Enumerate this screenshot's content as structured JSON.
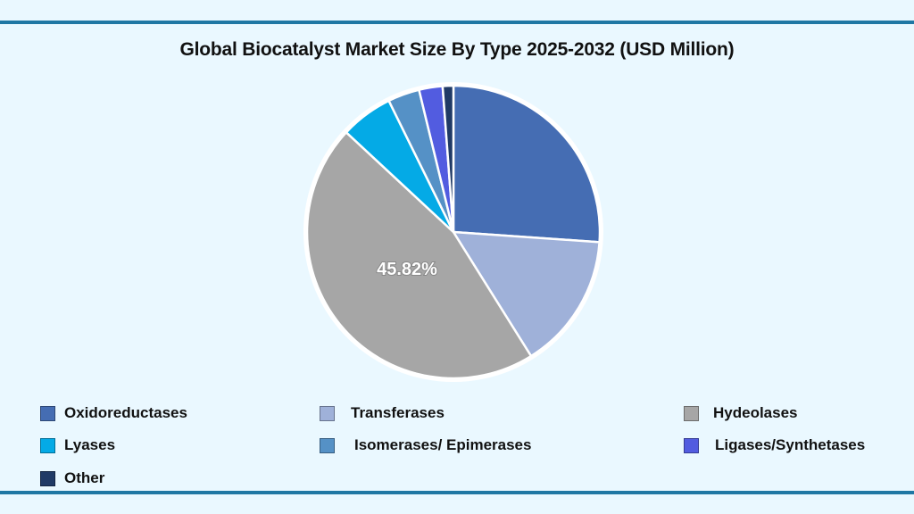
{
  "chart_data": {
    "type": "pie",
    "title": "Global Biocatalyst Market Size By Type 2025-2032 (USD Million)",
    "labels": [
      "Oxidoreductases",
      "Transferases",
      "Hydeolases",
      "Lyases",
      "Isomerases/ Epimerases",
      "Ligases/Synthetases",
      "Other"
    ],
    "values": [
      26.1,
      15.0,
      45.82,
      5.8,
      3.5,
      2.6,
      1.18
    ],
    "colors": [
      "#456db3",
      "#9fb1d9",
      "#a6a6a6",
      "#04aae6",
      "#5591c6",
      "#525ce0",
      "#203a66"
    ],
    "data_labels": [
      {
        "label": "Hydeolases",
        "text": "45.82%"
      }
    ],
    "legend_position": "bottom",
    "start_angle_deg": 0,
    "direction": "clockwise"
  },
  "header": {
    "title": "Global Biocatalyst Market Size By Type 2025-2032 (USD Million)"
  },
  "pie_label": "45.82%",
  "legend": {
    "items": [
      {
        "label": "Oxidoreductases",
        "color": "#456db3"
      },
      {
        "label": "Transferases",
        "color": "#9fb1d9"
      },
      {
        "label": "Hydeolases",
        "color": "#a6a6a6"
      },
      {
        "label": "Lyases",
        "color": "#04aae6"
      },
      {
        "label": "Isomerases/ Epimerases",
        "color": "#5591c6"
      },
      {
        "label": "Ligases/Synthetases",
        "color": "#525ce0"
      },
      {
        "label": "Other",
        "color": "#203a66"
      }
    ]
  },
  "colors": {
    "background": "#eaf8ff",
    "rule": "#1f77a4"
  }
}
